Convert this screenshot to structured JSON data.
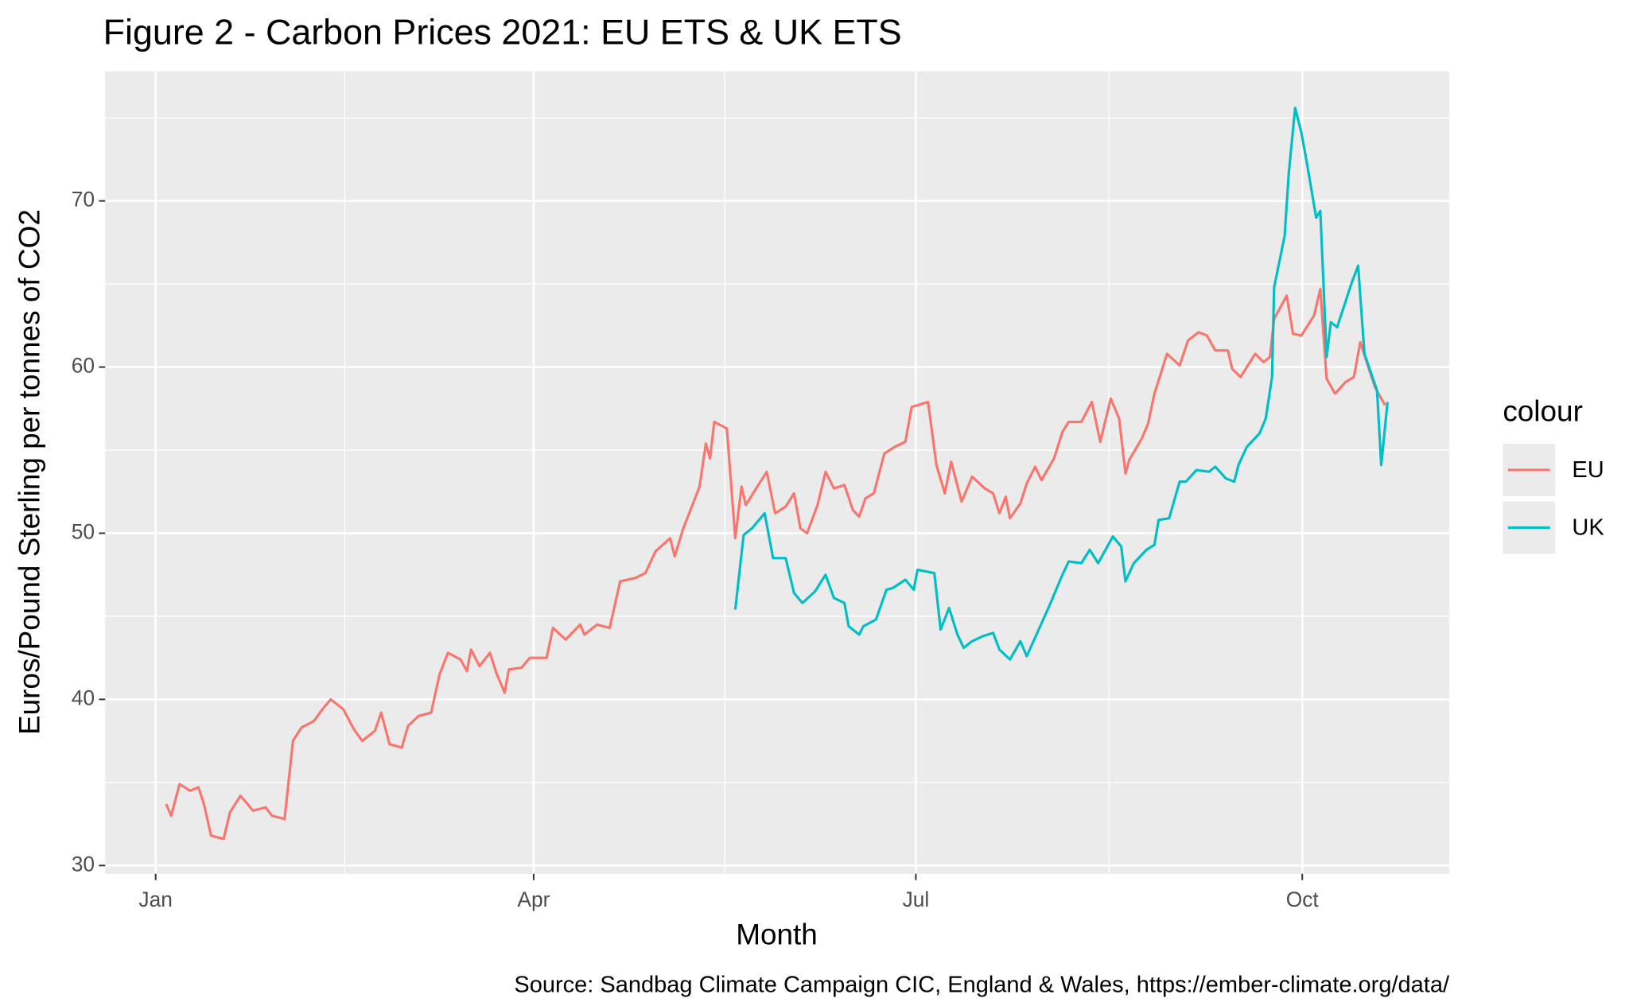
{
  "chart_data": {
    "type": "line",
    "title": "Figure 2 - Carbon Prices 2021: EU ETS & UK ETS",
    "x_label": "Month",
    "y_label": "Euros/Pound Sterling per tonnes of CO2",
    "caption": "Source: Sandbag Climate Campaign CIC, England & Wales, https://ember-climate.org/data/",
    "legend_title": "colour",
    "legend": "right",
    "grid": true,
    "xlim": [
      -11,
      309
    ],
    "ylim": [
      29.5,
      77.8
    ],
    "xticks": [
      {
        "value": 1,
        "label": "Jan"
      },
      {
        "value": 91,
        "label": "Apr"
      },
      {
        "value": 182,
        "label": "Jul"
      },
      {
        "value": 274,
        "label": "Oct"
      }
    ],
    "x_minor_grid": [
      46,
      136.5,
      228
    ],
    "yticks": [
      30,
      40,
      50,
      60,
      70
    ],
    "y_minor_grid": [
      35,
      45,
      55,
      65,
      75
    ],
    "series": [
      {
        "name": "EU",
        "color": "#F8766D",
        "x": [
          3.5,
          4.7,
          6.7,
          9.2,
          11.2,
          12.5,
          14.2,
          17.2,
          18.7,
          21.2,
          24.2,
          27.2,
          28.7,
          31.7,
          33.7,
          35.7,
          38.7,
          40.7,
          42.7,
          45.7,
          48.2,
          50.2,
          53.2,
          54.7,
          56.7,
          59.6,
          61.1,
          63.6,
          66.6,
          68.6,
          70.6,
          73.6,
          75.1,
          76.1,
          78.1,
          80.6,
          82.1,
          84.1,
          85.1,
          88.1,
          90.1,
          94.1,
          95.6,
          98.6,
          102.1,
          103.1,
          106.1,
          109.1,
          111.6,
          115.1,
          117.6,
          120.0,
          123.5,
          124.6,
          126.5,
          130.5,
          132.0,
          133.0,
          134.0,
          137.0,
          139.0,
          140.5,
          141.5,
          144.5,
          146.5,
          148.5,
          151.0,
          153.0,
          154.5,
          156.1,
          158.6,
          160.5,
          162.5,
          165.0,
          167.0,
          168.5,
          170.0,
          172.0,
          174.5,
          177.0,
          179.5,
          181.0,
          182.4,
          184.9,
          186.9,
          188.9,
          190.4,
          192.9,
          195.4,
          198.4,
          200.4,
          201.9,
          203.4,
          204.4,
          206.9,
          208.4,
          210.4,
          211.9,
          214.9,
          216.9,
          218.4,
          221.4,
          223.9,
          225.9,
          228.4,
          230.4,
          231.9,
          232.8,
          235.8,
          237.3,
          238.8,
          241.8,
          244.8,
          246.8,
          249.3,
          251.3,
          253.3,
          256.3,
          257.3,
          259.3,
          262.8,
          264.8,
          266.3,
          267.3,
          270.3,
          271.8,
          273.8,
          276.8,
          278.3,
          279.8,
          281.8,
          284.3,
          286.3,
          287.8,
          291.3,
          293.7
        ],
        "values": [
          33.7,
          33.0,
          34.9,
          34.5,
          34.7,
          33.7,
          31.8,
          31.6,
          33.2,
          34.2,
          33.3,
          33.5,
          33.0,
          32.8,
          37.5,
          38.3,
          38.7,
          39.4,
          40.0,
          39.4,
          38.2,
          37.5,
          38.1,
          39.2,
          37.3,
          37.1,
          38.4,
          39.0,
          39.2,
          41.5,
          42.8,
          42.4,
          41.7,
          43.0,
          42.0,
          42.8,
          41.6,
          40.4,
          41.8,
          41.9,
          42.5,
          42.5,
          44.3,
          43.6,
          44.5,
          43.9,
          44.5,
          44.3,
          47.1,
          47.3,
          47.6,
          48.9,
          49.7,
          48.6,
          50.2,
          52.8,
          55.4,
          54.5,
          56.7,
          56.3,
          49.7,
          52.8,
          51.7,
          52.9,
          53.7,
          51.2,
          51.6,
          52.4,
          50.3,
          50.0,
          51.7,
          53.7,
          52.7,
          52.9,
          51.4,
          51.0,
          52.1,
          52.4,
          54.8,
          55.2,
          55.5,
          57.6,
          57.7,
          57.9,
          54.1,
          52.4,
          54.3,
          51.9,
          53.4,
          52.7,
          52.4,
          51.2,
          52.2,
          50.9,
          51.8,
          53.0,
          54.0,
          53.2,
          54.5,
          56.1,
          56.7,
          56.7,
          57.9,
          55.5,
          58.1,
          56.9,
          53.6,
          54.4,
          55.7,
          56.6,
          58.4,
          60.8,
          60.1,
          61.6,
          62.1,
          61.9,
          61.0,
          61.0,
          59.9,
          59.4,
          60.8,
          60.3,
          60.6,
          62.9,
          64.3,
          62.0,
          61.9,
          63.1,
          64.7,
          59.3,
          58.4,
          59.1,
          59.4,
          61.5,
          58.8,
          57.7
        ]
      },
      {
        "name": "UK",
        "color": "#00BFC4",
        "x": [
          139.0,
          141.0,
          143.0,
          146.0,
          148.0,
          151.0,
          153.0,
          155.0,
          158.0,
          160.5,
          162.5,
          165.0,
          166.0,
          168.5,
          169.5,
          172.5,
          175.0,
          176.5,
          179.5,
          181.5,
          182.4,
          186.4,
          187.9,
          189.9,
          191.9,
          193.4,
          195.4,
          197.9,
          200.4,
          201.9,
          204.4,
          206.9,
          208.4,
          210.9,
          213.9,
          216.9,
          218.4,
          221.4,
          223.4,
          225.4,
          228.9,
          230.9,
          231.9,
          233.9,
          236.9,
          238.8,
          239.8,
          242.3,
          244.8,
          246.3,
          248.8,
          251.8,
          253.3,
          255.8,
          257.8,
          258.8,
          260.8,
          263.8,
          265.3,
          266.8,
          267.3,
          269.8,
          270.8,
          272.3,
          273.8,
          275.3,
          277.3,
          278.3,
          279.8,
          280.8,
          282.3,
          285.8,
          287.3,
          288.8,
          291.8,
          292.8,
          294.3
        ],
        "values": [
          45.4,
          49.9,
          50.3,
          51.2,
          48.5,
          48.5,
          46.4,
          45.8,
          46.5,
          47.5,
          46.1,
          45.8,
          44.4,
          43.9,
          44.4,
          44.8,
          46.6,
          46.7,
          47.2,
          46.6,
          47.8,
          47.6,
          44.2,
          45.5,
          43.9,
          43.1,
          43.5,
          43.8,
          44.0,
          43.0,
          42.4,
          43.5,
          42.6,
          44.0,
          45.7,
          47.5,
          48.3,
          48.2,
          49.0,
          48.2,
          49.8,
          49.2,
          47.1,
          48.2,
          49.0,
          49.3,
          50.8,
          50.9,
          53.1,
          53.1,
          53.8,
          53.7,
          54.0,
          53.3,
          53.1,
          54.1,
          55.2,
          56.0,
          56.9,
          59.4,
          64.8,
          67.9,
          71.7,
          75.6,
          74.1,
          72.0,
          69.0,
          69.4,
          60.6,
          62.7,
          62.4,
          65.1,
          66.1,
          60.8,
          58.6,
          54.1,
          57.9
        ]
      }
    ]
  }
}
